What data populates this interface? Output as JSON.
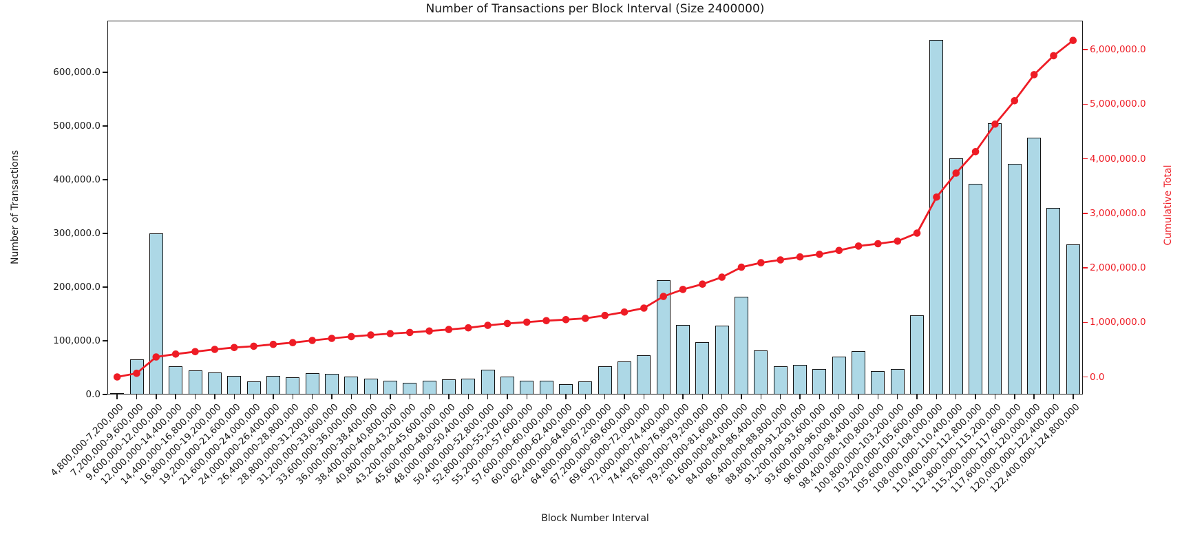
{
  "chart_data": {
    "type": "bar",
    "title": "Number of Transactions per Block Interval (Size 2400000)",
    "xlabel": "Block Number Interval",
    "categories": [
      "4,800,000-7,200,000",
      "7,200,000-9,600,000",
      "9,600,000-12,000,000",
      "12,000,000-14,400,000",
      "14,400,000-16,800,000",
      "16,800,000-19,200,000",
      "19,200,000-21,600,000",
      "21,600,000-24,000,000",
      "24,000,000-26,400,000",
      "26,400,000-28,800,000",
      "28,800,000-31,200,000",
      "31,200,000-33,600,000",
      "33,600,000-36,000,000",
      "36,000,000-38,400,000",
      "38,400,000-40,800,000",
      "40,800,000-43,200,000",
      "43,200,000-45,600,000",
      "45,600,000-48,000,000",
      "48,000,000-50,400,000",
      "50,400,000-52,800,000",
      "52,800,000-55,200,000",
      "55,200,000-57,600,000",
      "57,600,000-60,000,000",
      "60,000,000-62,400,000",
      "62,400,000-64,800,000",
      "64,800,000-67,200,000",
      "67,200,000-69,600,000",
      "69,600,000-72,000,000",
      "72,000,000-74,400,000",
      "74,400,000-76,800,000",
      "76,800,000-79,200,000",
      "79,200,000-81,600,000",
      "81,600,000-84,000,000",
      "84,000,000-86,400,000",
      "86,400,000-88,800,000",
      "88,800,000-91,200,000",
      "91,200,000-93,600,000",
      "93,600,000-96,000,000",
      "96,000,000-98,400,000",
      "98,400,000-100,800,000",
      "100,800,000-103,200,000",
      "103,200,000-105,600,000",
      "105,600,000-108,000,000",
      "108,000,000-110,400,000",
      "110,400,000-112,800,000",
      "112,800,000-115,200,000",
      "115,200,000-117,600,000",
      "117,600,000-120,000,000",
      "120,000,000-122,400,000",
      "122,400,000-124,800,000"
    ],
    "series": [
      {
        "name": "Number of Transactions",
        "type": "bar",
        "axis": "left",
        "values": [
          2000,
          66000,
          300000,
          52000,
          45000,
          41000,
          34000,
          24000,
          34000,
          32000,
          40000,
          38000,
          33000,
          29000,
          25000,
          22000,
          26000,
          28000,
          30000,
          46000,
          33000,
          26000,
          26000,
          19000,
          24000,
          53000,
          62000,
          73000,
          213000,
          129000,
          97000,
          128000,
          182000,
          82000,
          52000,
          55000,
          48000,
          70000,
          81000,
          43000,
          47000,
          147000,
          660000,
          440000,
          392000,
          505000,
          429000,
          478000,
          347000,
          280000
        ]
      },
      {
        "name": "Cumulative Total",
        "type": "line",
        "axis": "right",
        "marker": "circle",
        "values": [
          2000,
          68000,
          368000,
          420000,
          465000,
          506000,
          540000,
          564000,
          598000,
          630000,
          670000,
          708000,
          741000,
          770000,
          795000,
          817000,
          843000,
          871000,
          901000,
          947000,
          980000,
          1006000,
          1032000,
          1051000,
          1075000,
          1128000,
          1190000,
          1263000,
          1476000,
          1605000,
          1702000,
          1830000,
          2012000,
          2094000,
          2146000,
          2201000,
          2249000,
          2319000,
          2400000,
          2443000,
          2490000,
          2637000,
          3297000,
          3737000,
          4129000,
          4634000,
          5063000,
          5541000,
          5888000,
          6168000
        ]
      }
    ],
    "left_axis": {
      "label": "Number of Transactions",
      "tick_labels": [
        "0.0",
        "100,000.0",
        "200,000.0",
        "300,000.0",
        "400,000.0",
        "500,000.0",
        "600,000.0"
      ],
      "tick_values": [
        0,
        100000,
        200000,
        300000,
        400000,
        500000,
        600000
      ],
      "range": [
        0,
        696000
      ],
      "grid": false
    },
    "right_axis": {
      "label": "Cumulative Total",
      "tick_labels": [
        "0.0",
        "1,000,000.0",
        "2,000,000.0",
        "3,000,000.0",
        "4,000,000.0",
        "5,000,000.0",
        "6,000,000.0"
      ],
      "tick_values": [
        0,
        1000000,
        2000000,
        3000000,
        4000000,
        5000000,
        6000000
      ],
      "range": [
        -320000,
        6530000
      ],
      "color": "#ee1c25"
    },
    "colors": {
      "bar_fill": "#add8e6",
      "bar_edge": "#141414",
      "line": "#ee1c25",
      "text": "#1a1a1a"
    },
    "legend": "none"
  }
}
